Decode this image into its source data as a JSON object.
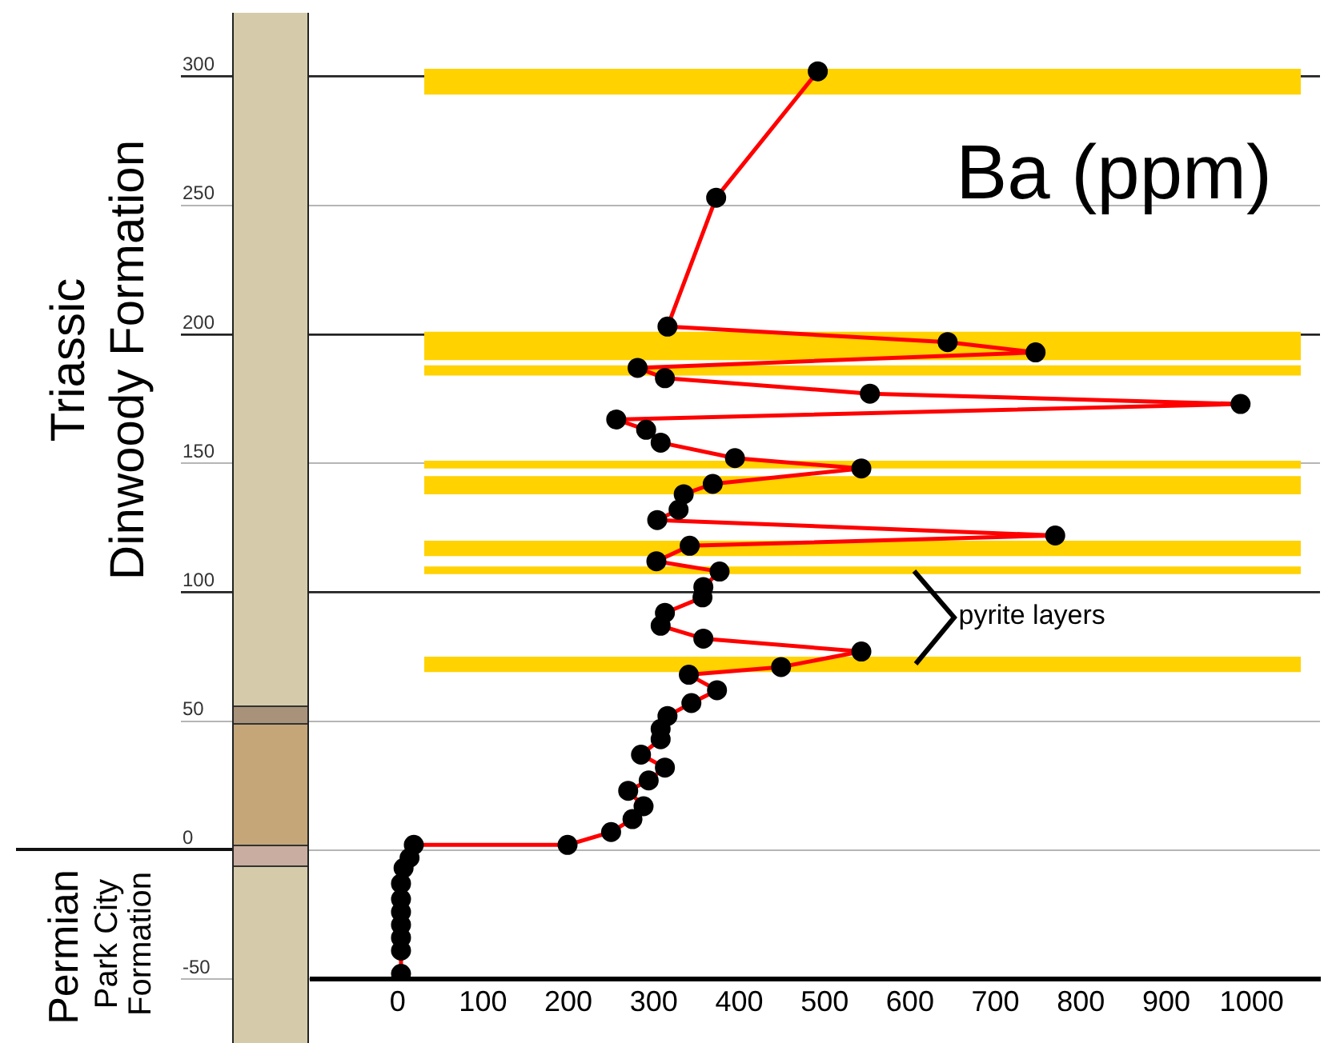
{
  "chart_data": {
    "type": "line",
    "title": "Ba (ppm)",
    "annotations": [
      "Triassic",
      "Dinwoody Formation",
      "Permian",
      "Park City Formation",
      "pyrite layers"
    ],
    "xlim": [
      -100,
      1080
    ],
    "xticks": [
      0,
      100,
      200,
      300,
      400,
      500,
      600,
      700,
      800,
      900,
      1000
    ],
    "ylim": [
      -50,
      325
    ],
    "yticks": [
      -50,
      0,
      50,
      100,
      150,
      200,
      250,
      300
    ],
    "grid": "y",
    "marker": "circle",
    "line_style": "solid",
    "series": [
      {
        "color": "#ff0000",
        "x": [
          492,
          373,
          316,
          644,
          747,
          281,
          313,
          553,
          987,
          256,
          291,
          308,
          395,
          543,
          369,
          335,
          329,
          304,
          770,
          342,
          303,
          377,
          358,
          357,
          313,
          308,
          358,
          543,
          449,
          341,
          374,
          344,
          316,
          308,
          308,
          285,
          313,
          294,
          270,
          288,
          275,
          250,
          199,
          19,
          14,
          7,
          4,
          4,
          4,
          4,
          4,
          4,
          4
        ],
        "values": [
          302,
          253,
          203,
          197,
          193,
          187,
          183,
          177,
          173,
          167,
          163,
          158,
          152,
          148,
          142,
          138,
          132,
          128,
          122,
          118,
          112,
          108,
          102,
          98,
          92,
          87,
          82,
          77,
          71,
          68,
          62,
          57,
          52,
          47,
          43,
          37,
          32,
          27,
          23,
          17,
          12,
          7,
          2,
          2,
          -3,
          -7,
          -13,
          -19,
          -24,
          -29,
          -34,
          -39,
          -48
        ]
      }
    ],
    "bands": [
      {
        "axis": "y",
        "from": 293,
        "to": 303,
        "color": "#ffd200"
      },
      {
        "axis": "y",
        "from": 190,
        "to": 201,
        "color": "#ffd200"
      },
      {
        "axis": "y",
        "from": 184,
        "to": 188,
        "color": "#ffd200"
      },
      {
        "axis": "y",
        "from": 148,
        "to": 151,
        "color": "#ffd200"
      },
      {
        "axis": "y",
        "from": 138,
        "to": 145,
        "color": "#ffd200"
      },
      {
        "axis": "y",
        "from": 114,
        "to": 120,
        "color": "#ffd200"
      },
      {
        "axis": "y",
        "from": 107,
        "to": 110,
        "color": "#ffd200"
      },
      {
        "axis": "y",
        "from": 69,
        "to": 75,
        "color": "#ffd200"
      }
    ]
  }
}
